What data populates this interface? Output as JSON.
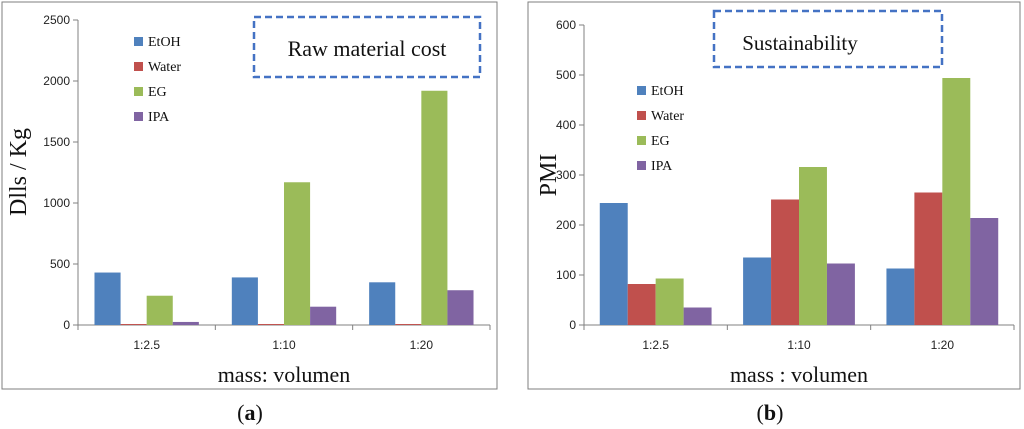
{
  "chart_data": [
    {
      "type": "bar",
      "panel_label": "a",
      "annotation": "Raw material cost",
      "xlabel": "mass: volumen",
      "ylabel": "Dlls / Kg",
      "ylim": [
        0,
        2500
      ],
      "yticks": [
        0,
        500,
        1000,
        1500,
        2000,
        2500
      ],
      "categories": [
        "1:2.5",
        "1:10",
        "1:20"
      ],
      "legend_position": "top-left",
      "series": [
        {
          "name": "EtOH",
          "color": "#4f81bd",
          "values": [
            430,
            390,
            350
          ]
        },
        {
          "name": "Water",
          "color": "#c0504d",
          "values": [
            8,
            8,
            8
          ]
        },
        {
          "name": "EG",
          "color": "#9bbb59",
          "values": [
            240,
            1170,
            1920
          ]
        },
        {
          "name": "IPA",
          "color": "#8064a2",
          "values": [
            25,
            150,
            285
          ]
        }
      ]
    },
    {
      "type": "bar",
      "panel_label": "b",
      "annotation": "Sustainability",
      "xlabel": "mass : volumen",
      "ylabel": "PMI",
      "ylim": [
        0,
        600
      ],
      "yticks": [
        0,
        100,
        200,
        300,
        400,
        500,
        600
      ],
      "categories": [
        "1:2.5",
        "1:10",
        "1:20"
      ],
      "legend_position": "top-left",
      "series": [
        {
          "name": "EtOH",
          "color": "#4f81bd",
          "values": [
            244,
            135,
            113
          ]
        },
        {
          "name": "Water",
          "color": "#c0504d",
          "values": [
            82,
            251,
            265
          ]
        },
        {
          "name": "EG",
          "color": "#9bbb59",
          "values": [
            93,
            316,
            494
          ]
        },
        {
          "name": "IPA",
          "color": "#8064a2",
          "values": [
            35,
            123,
            214
          ]
        }
      ]
    }
  ]
}
